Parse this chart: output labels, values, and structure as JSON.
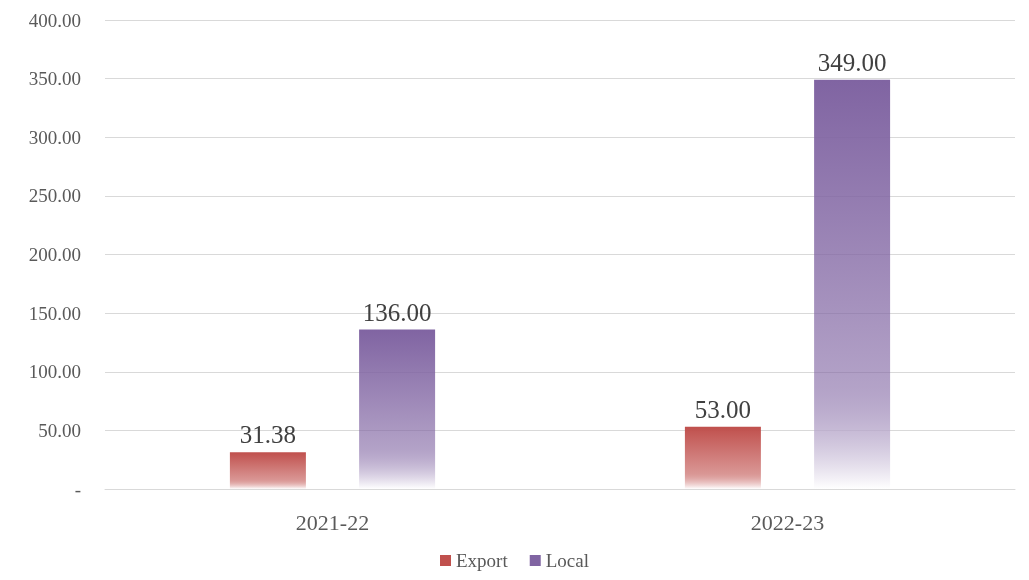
{
  "chart_data": {
    "type": "bar",
    "categories": [
      "2021-22",
      "2022-23"
    ],
    "series": [
      {
        "name": "Export",
        "color": "#c0504d",
        "values": [
          31.38,
          53
        ],
        "value_labels": [
          "31.38",
          "53.00"
        ]
      },
      {
        "name": "Local",
        "color": "#8064a2",
        "values": [
          136,
          349
        ],
        "value_labels": [
          "136.00",
          "349.00"
        ]
      }
    ],
    "ylim": [
      0,
      400
    ],
    "yticks": [
      {
        "value": 0,
        "label": "-"
      },
      {
        "value": 50,
        "label": "50.00"
      },
      {
        "value": 100,
        "label": "100.00"
      },
      {
        "value": 150,
        "label": "150.00"
      },
      {
        "value": 200,
        "label": "200.00"
      },
      {
        "value": 250,
        "label": "250.00"
      },
      {
        "value": 300,
        "label": "300.00"
      },
      {
        "value": 350,
        "label": "350.00"
      },
      {
        "value": 400,
        "label": "400.00"
      }
    ],
    "grid": "y",
    "legend": "bottom"
  }
}
